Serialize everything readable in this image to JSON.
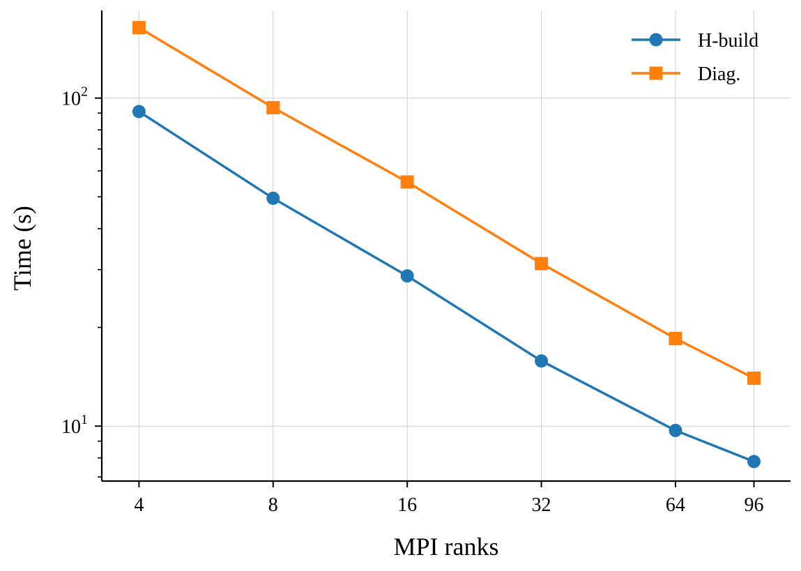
{
  "chart_data": {
    "type": "line",
    "x": [
      4,
      8,
      16,
      32,
      64,
      96
    ],
    "xticklabels": [
      "4",
      "8",
      "16",
      "32",
      "64",
      "96"
    ],
    "xlabel": "MPI ranks",
    "ylabel": "Time (s)",
    "yscale": "log",
    "ylim": [
      6.8,
      185
    ],
    "xscale": "log2",
    "xlim": [
      3.3,
      116
    ],
    "ytick_base": "10",
    "yticks": [
      {
        "value": 10,
        "exponent": "1"
      },
      {
        "value": 100,
        "exponent": "2"
      }
    ],
    "grid": true,
    "legend_position": "top-right",
    "series": [
      {
        "name": "H-build",
        "marker": "circle",
        "color": "#1f77b4",
        "values": [
          91,
          49.5,
          28.7,
          15.8,
          9.7,
          7.8
        ]
      },
      {
        "name": "Diag.",
        "marker": "square",
        "color": "#ff7f0e",
        "values": [
          164,
          93.5,
          55.5,
          31.3,
          18.5,
          14
        ]
      }
    ]
  }
}
